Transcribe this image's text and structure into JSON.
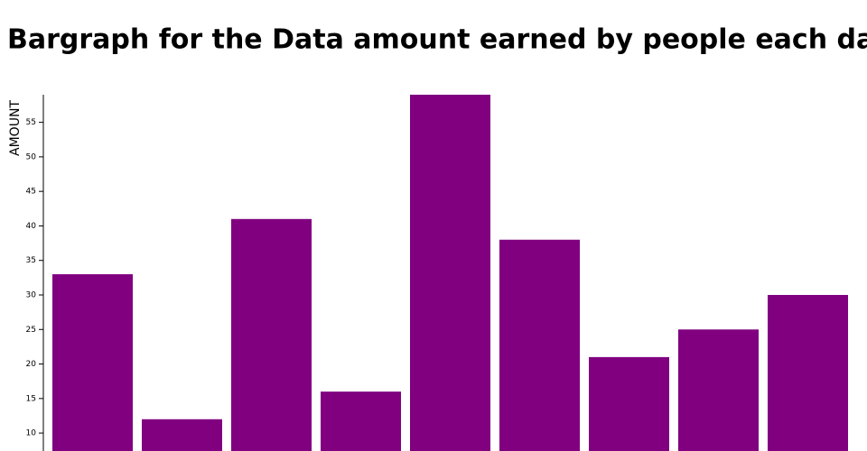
{
  "chart_data": {
    "type": "bar",
    "title": "Bargraph for the Data amount earned by people each day",
    "y_label": "AMOUNT",
    "categories": [
      null,
      null,
      null,
      null,
      null,
      null,
      null,
      null,
      null
    ],
    "values": [
      33,
      12,
      41,
      16,
      59,
      38,
      21,
      25,
      30
    ],
    "color": "#800080",
    "ylim": [
      7.4,
      59
    ],
    "yticks": [
      10,
      15,
      20,
      25,
      30,
      35,
      40,
      45,
      50,
      55
    ],
    "grid": false
  }
}
